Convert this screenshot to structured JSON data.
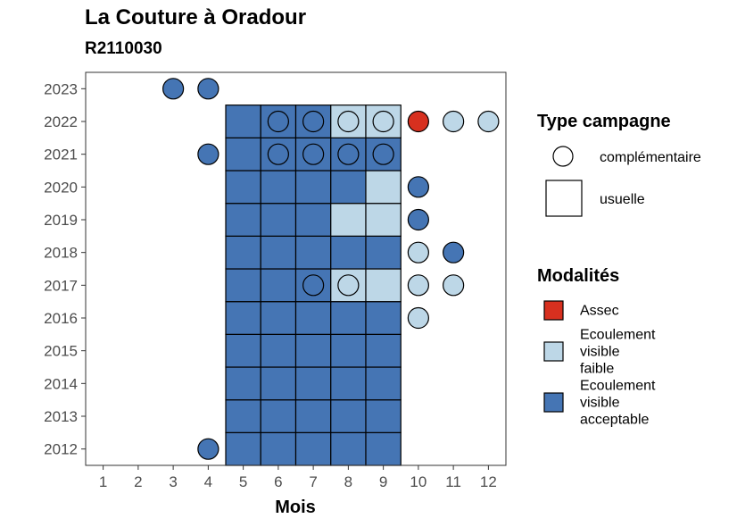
{
  "title": "La Couture à Oradour",
  "subtitle": "R2110030",
  "colors": {
    "Assec": "#d7301f",
    "Ecoulement visible faible": "#bdd7e7",
    "Ecoulement visible acceptable": "#4575b4"
  },
  "chart_data": {
    "type": "heatmap",
    "xlabel": "Mois",
    "ylabel": "",
    "x_ticks": [
      1,
      2,
      3,
      4,
      5,
      6,
      7,
      8,
      9,
      10,
      11,
      12
    ],
    "y_ticks": [
      2012,
      2013,
      2014,
      2015,
      2016,
      2017,
      2018,
      2019,
      2020,
      2021,
      2022,
      2023
    ],
    "xlim": [
      0.5,
      12.5
    ],
    "ylim": [
      2011.5,
      2023.5
    ],
    "legend_type": {
      "title": "Type campagne",
      "items": [
        {
          "label": "complémentaire",
          "shape": "circle"
        },
        {
          "label": "usuelle",
          "shape": "square"
        }
      ]
    },
    "legend_modalites": {
      "title": "Modalités",
      "items": [
        {
          "label_lines": [
            "Assec"
          ],
          "value": "Assec"
        },
        {
          "label_lines": [
            "Ecoulement",
            "visible",
            "faible"
          ],
          "value": "Ecoulement visible faible"
        },
        {
          "label_lines": [
            "Ecoulement",
            "visible",
            "acceptable"
          ],
          "value": "Ecoulement visible acceptable"
        }
      ]
    },
    "points": [
      {
        "year": 2012,
        "month": 4,
        "type": "complémentaire",
        "value": "Ecoulement visible acceptable"
      },
      {
        "year": 2012,
        "month": 5,
        "type": "usuelle",
        "value": "Ecoulement visible acceptable"
      },
      {
        "year": 2012,
        "month": 6,
        "type": "usuelle",
        "value": "Ecoulement visible acceptable"
      },
      {
        "year": 2012,
        "month": 7,
        "type": "usuelle",
        "value": "Ecoulement visible acceptable"
      },
      {
        "year": 2012,
        "month": 8,
        "type": "usuelle",
        "value": "Ecoulement visible acceptable"
      },
      {
        "year": 2012,
        "month": 9,
        "type": "usuelle",
        "value": "Ecoulement visible acceptable"
      },
      {
        "year": 2013,
        "month": 5,
        "type": "usuelle",
        "value": "Ecoulement visible acceptable"
      },
      {
        "year": 2013,
        "month": 6,
        "type": "usuelle",
        "value": "Ecoulement visible acceptable"
      },
      {
        "year": 2013,
        "month": 7,
        "type": "usuelle",
        "value": "Ecoulement visible acceptable"
      },
      {
        "year": 2013,
        "month": 8,
        "type": "usuelle",
        "value": "Ecoulement visible acceptable"
      },
      {
        "year": 2013,
        "month": 9,
        "type": "usuelle",
        "value": "Ecoulement visible acceptable"
      },
      {
        "year": 2014,
        "month": 5,
        "type": "usuelle",
        "value": "Ecoulement visible acceptable"
      },
      {
        "year": 2014,
        "month": 6,
        "type": "usuelle",
        "value": "Ecoulement visible acceptable"
      },
      {
        "year": 2014,
        "month": 7,
        "type": "usuelle",
        "value": "Ecoulement visible acceptable"
      },
      {
        "year": 2014,
        "month": 8,
        "type": "usuelle",
        "value": "Ecoulement visible acceptable"
      },
      {
        "year": 2014,
        "month": 9,
        "type": "usuelle",
        "value": "Ecoulement visible acceptable"
      },
      {
        "year": 2015,
        "month": 5,
        "type": "usuelle",
        "value": "Ecoulement visible acceptable"
      },
      {
        "year": 2015,
        "month": 6,
        "type": "usuelle",
        "value": "Ecoulement visible acceptable"
      },
      {
        "year": 2015,
        "month": 7,
        "type": "usuelle",
        "value": "Ecoulement visible acceptable"
      },
      {
        "year": 2015,
        "month": 8,
        "type": "usuelle",
        "value": "Ecoulement visible acceptable"
      },
      {
        "year": 2015,
        "month": 9,
        "type": "usuelle",
        "value": "Ecoulement visible acceptable"
      },
      {
        "year": 2016,
        "month": 5,
        "type": "usuelle",
        "value": "Ecoulement visible acceptable"
      },
      {
        "year": 2016,
        "month": 6,
        "type": "usuelle",
        "value": "Ecoulement visible acceptable"
      },
      {
        "year": 2016,
        "month": 7,
        "type": "usuelle",
        "value": "Ecoulement visible acceptable"
      },
      {
        "year": 2016,
        "month": 8,
        "type": "usuelle",
        "value": "Ecoulement visible acceptable"
      },
      {
        "year": 2016,
        "month": 9,
        "type": "usuelle",
        "value": "Ecoulement visible acceptable"
      },
      {
        "year": 2016,
        "month": 10,
        "type": "complémentaire",
        "value": "Ecoulement visible faible"
      },
      {
        "year": 2017,
        "month": 5,
        "type": "usuelle",
        "value": "Ecoulement visible acceptable"
      },
      {
        "year": 2017,
        "month": 6,
        "type": "usuelle",
        "value": "Ecoulement visible acceptable"
      },
      {
        "year": 2017,
        "month": 7,
        "type": "usuelle",
        "value": "Ecoulement visible acceptable"
      },
      {
        "year": 2017,
        "month": 7,
        "type": "complémentaire",
        "value": "Ecoulement visible acceptable"
      },
      {
        "year": 2017,
        "month": 8,
        "type": "usuelle",
        "value": "Ecoulement visible faible"
      },
      {
        "year": 2017,
        "month": 8,
        "type": "complémentaire",
        "value": "Ecoulement visible faible"
      },
      {
        "year": 2017,
        "month": 9,
        "type": "usuelle",
        "value": "Ecoulement visible faible"
      },
      {
        "year": 2017,
        "month": 10,
        "type": "complémentaire",
        "value": "Ecoulement visible faible"
      },
      {
        "year": 2017,
        "month": 11,
        "type": "complémentaire",
        "value": "Ecoulement visible faible"
      },
      {
        "year": 2018,
        "month": 5,
        "type": "usuelle",
        "value": "Ecoulement visible acceptable"
      },
      {
        "year": 2018,
        "month": 6,
        "type": "usuelle",
        "value": "Ecoulement visible acceptable"
      },
      {
        "year": 2018,
        "month": 7,
        "type": "usuelle",
        "value": "Ecoulement visible acceptable"
      },
      {
        "year": 2018,
        "month": 8,
        "type": "usuelle",
        "value": "Ecoulement visible acceptable"
      },
      {
        "year": 2018,
        "month": 9,
        "type": "usuelle",
        "value": "Ecoulement visible acceptable"
      },
      {
        "year": 2018,
        "month": 10,
        "type": "complémentaire",
        "value": "Ecoulement visible faible"
      },
      {
        "year": 2018,
        "month": 11,
        "type": "complémentaire",
        "value": "Ecoulement visible acceptable"
      },
      {
        "year": 2019,
        "month": 5,
        "type": "usuelle",
        "value": "Ecoulement visible acceptable"
      },
      {
        "year": 2019,
        "month": 6,
        "type": "usuelle",
        "value": "Ecoulement visible acceptable"
      },
      {
        "year": 2019,
        "month": 7,
        "type": "usuelle",
        "value": "Ecoulement visible acceptable"
      },
      {
        "year": 2019,
        "month": 8,
        "type": "usuelle",
        "value": "Ecoulement visible faible"
      },
      {
        "year": 2019,
        "month": 9,
        "type": "usuelle",
        "value": "Ecoulement visible faible"
      },
      {
        "year": 2019,
        "month": 10,
        "type": "complémentaire",
        "value": "Ecoulement visible acceptable"
      },
      {
        "year": 2020,
        "month": 5,
        "type": "usuelle",
        "value": "Ecoulement visible acceptable"
      },
      {
        "year": 2020,
        "month": 6,
        "type": "usuelle",
        "value": "Ecoulement visible acceptable"
      },
      {
        "year": 2020,
        "month": 7,
        "type": "usuelle",
        "value": "Ecoulement visible acceptable"
      },
      {
        "year": 2020,
        "month": 8,
        "type": "usuelle",
        "value": "Ecoulement visible acceptable"
      },
      {
        "year": 2020,
        "month": 9,
        "type": "usuelle",
        "value": "Ecoulement visible faible"
      },
      {
        "year": 2020,
        "month": 10,
        "type": "complémentaire",
        "value": "Ecoulement visible acceptable"
      },
      {
        "year": 2021,
        "month": 4,
        "type": "complémentaire",
        "value": "Ecoulement visible acceptable"
      },
      {
        "year": 2021,
        "month": 5,
        "type": "usuelle",
        "value": "Ecoulement visible acceptable"
      },
      {
        "year": 2021,
        "month": 6,
        "type": "usuelle",
        "value": "Ecoulement visible acceptable"
      },
      {
        "year": 2021,
        "month": 6,
        "type": "complémentaire",
        "value": "Ecoulement visible acceptable"
      },
      {
        "year": 2021,
        "month": 7,
        "type": "usuelle",
        "value": "Ecoulement visible acceptable"
      },
      {
        "year": 2021,
        "month": 7,
        "type": "complémentaire",
        "value": "Ecoulement visible acceptable"
      },
      {
        "year": 2021,
        "month": 8,
        "type": "usuelle",
        "value": "Ecoulement visible acceptable"
      },
      {
        "year": 2021,
        "month": 8,
        "type": "complémentaire",
        "value": "Ecoulement visible acceptable"
      },
      {
        "year": 2021,
        "month": 9,
        "type": "usuelle",
        "value": "Ecoulement visible acceptable"
      },
      {
        "year": 2021,
        "month": 9,
        "type": "complémentaire",
        "value": "Ecoulement visible acceptable"
      },
      {
        "year": 2022,
        "month": 5,
        "type": "usuelle",
        "value": "Ecoulement visible acceptable"
      },
      {
        "year": 2022,
        "month": 6,
        "type": "usuelle",
        "value": "Ecoulement visible acceptable"
      },
      {
        "year": 2022,
        "month": 6,
        "type": "complémentaire",
        "value": "Ecoulement visible acceptable"
      },
      {
        "year": 2022,
        "month": 7,
        "type": "usuelle",
        "value": "Ecoulement visible acceptable"
      },
      {
        "year": 2022,
        "month": 7,
        "type": "complémentaire",
        "value": "Ecoulement visible acceptable"
      },
      {
        "year": 2022,
        "month": 8,
        "type": "usuelle",
        "value": "Ecoulement visible faible"
      },
      {
        "year": 2022,
        "month": 8,
        "type": "complémentaire",
        "value": "Ecoulement visible faible"
      },
      {
        "year": 2022,
        "month": 9,
        "type": "usuelle",
        "value": "Ecoulement visible faible"
      },
      {
        "year": 2022,
        "month": 9,
        "type": "complémentaire",
        "value": "Ecoulement visible faible"
      },
      {
        "year": 2022,
        "month": 10,
        "type": "complémentaire",
        "value": "Assec"
      },
      {
        "year": 2022,
        "month": 11,
        "type": "complémentaire",
        "value": "Ecoulement visible faible"
      },
      {
        "year": 2022,
        "month": 12,
        "type": "complémentaire",
        "value": "Ecoulement visible faible"
      },
      {
        "year": 2023,
        "month": 3,
        "type": "complémentaire",
        "value": "Ecoulement visible acceptable"
      },
      {
        "year": 2023,
        "month": 4,
        "type": "complémentaire",
        "value": "Ecoulement visible acceptable"
      }
    ]
  }
}
